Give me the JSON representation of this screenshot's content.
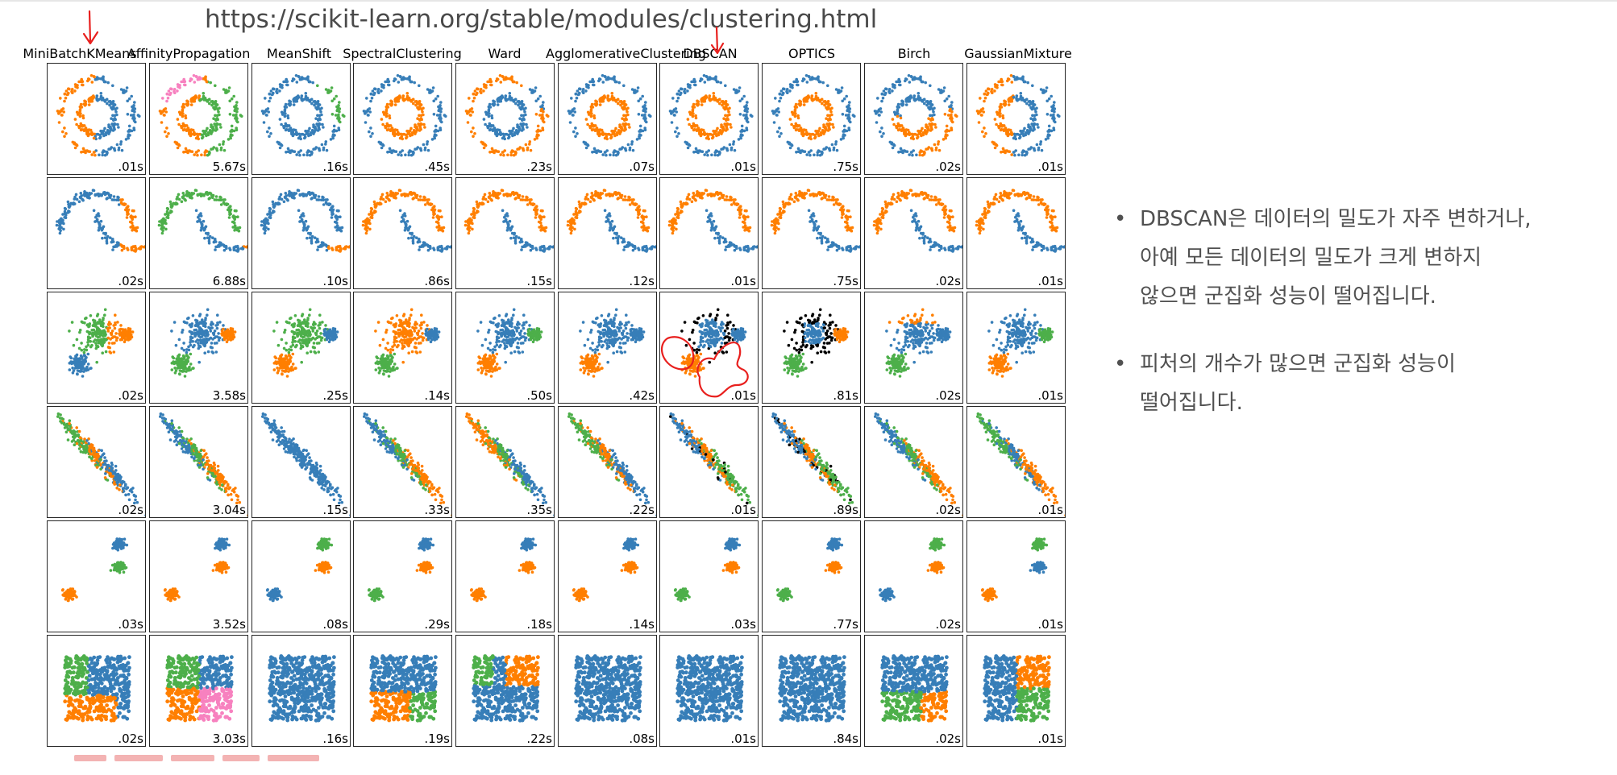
{
  "slide": {
    "url": "https://scikit-learn.org/stable/modules/clustering.html",
    "bullets": [
      {
        "icon": "bullet-dot",
        "lines": [
          "DBSCAN은 데이터의 밀도가 자주 변하거나,",
          "아예 모든 데이터의 밀도가 크게 변하지",
          "않으면 군집화 성능이 떨어집니다."
        ]
      },
      {
        "icon": "bullet-dot",
        "lines": [
          "피처의 개수가 많으면 군집화 성능이",
          "떨어집니다."
        ]
      }
    ]
  },
  "palette": {
    "blue": "#377eb8",
    "orange": "#ff7f00",
    "green": "#4daf4a",
    "pink": "#f781bf",
    "noise": "#000000",
    "annotation_red": "#e8201e"
  },
  "figure": {
    "columns": [
      "MiniBatchKMeans",
      "AffinityPropagation",
      "MeanShift",
      "SpectralClustering",
      "Ward",
      "AgglomerativeClustering",
      "DBSCAN",
      "OPTICS",
      "Birch",
      "GaussianMixture"
    ],
    "datasets": [
      "noisy_circles",
      "noisy_moons",
      "varied",
      "aniso",
      "blobs",
      "no_structure"
    ],
    "times": [
      [
        ".01s",
        "5.67s",
        ".16s",
        ".45s",
        ".23s",
        ".07s",
        ".01s",
        ".75s",
        ".02s",
        ".01s"
      ],
      [
        ".02s",
        "6.88s",
        ".10s",
        ".86s",
        ".15s",
        ".12s",
        ".01s",
        ".75s",
        ".02s",
        ".01s"
      ],
      [
        ".02s",
        "3.58s",
        ".25s",
        ".14s",
        ".50s",
        ".42s",
        ".01s",
        ".81s",
        ".02s",
        ".01s"
      ],
      [
        ".02s",
        "3.04s",
        ".15s",
        ".33s",
        ".35s",
        ".22s",
        ".01s",
        ".89s",
        ".02s",
        ".01s"
      ],
      [
        ".03s",
        "3.52s",
        ".08s",
        ".29s",
        ".18s",
        ".14s",
        ".03s",
        ".77s",
        ".02s",
        ".01s"
      ],
      [
        ".02s",
        "3.03s",
        ".16s",
        ".19s",
        ".22s",
        ".08s",
        ".01s",
        ".84s",
        ".02s",
        ".01s"
      ]
    ]
  }
}
